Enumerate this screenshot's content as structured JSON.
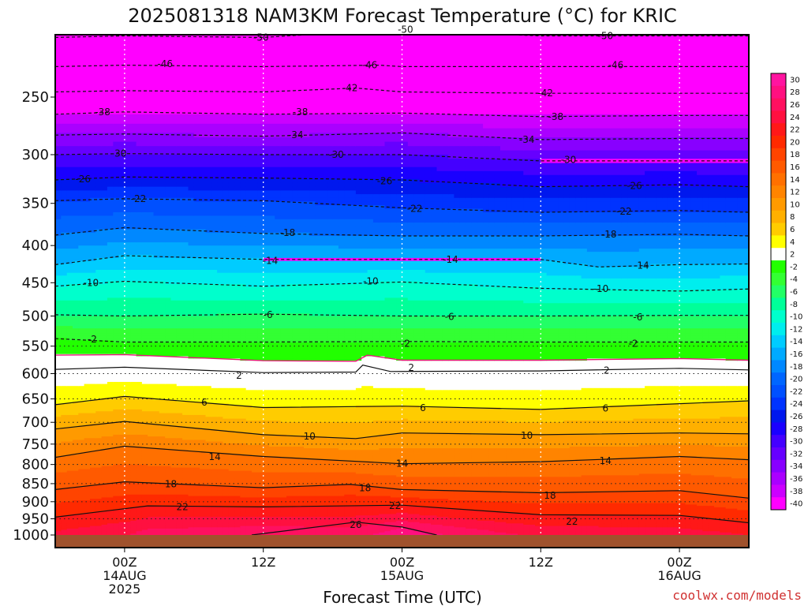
{
  "chart_data": {
    "type": "heatmap",
    "title": "2025081318 NAM3KM Forecast Temperature (°C) for KRIC",
    "xlabel": "Forecast Time (UTC)",
    "ylabel": "",
    "credit": "coolwx.com/models",
    "x_axis": {
      "unit": "forecast hour from 2025-08-13 18Z",
      "range": [
        0,
        60
      ],
      "ticks": [
        {
          "hour": 6,
          "lines": [
            "00Z",
            "14AUG",
            "2025"
          ]
        },
        {
          "hour": 18,
          "lines": [
            "12Z"
          ]
        },
        {
          "hour": 30,
          "lines": [
            "00Z",
            "15AUG"
          ]
        },
        {
          "hour": 42,
          "lines": [
            "12Z"
          ]
        },
        {
          "hour": 54,
          "lines": [
            "00Z",
            "16AUG"
          ]
        }
      ]
    },
    "y_axis": {
      "unit": "hPa",
      "scale": "log",
      "range": [
        1000,
        200
      ],
      "ticks": [
        250,
        300,
        350,
        400,
        450,
        500,
        550,
        600,
        650,
        700,
        750,
        800,
        850,
        900,
        950,
        1000
      ],
      "dotted_levels": [
        550,
        600,
        650,
        700,
        750,
        800,
        850,
        900,
        950
      ]
    },
    "colorbar": {
      "levels": [
        30,
        28,
        26,
        24,
        22,
        20,
        18,
        16,
        14,
        12,
        10,
        8,
        6,
        4,
        2,
        -2,
        -4,
        -6,
        -8,
        -10,
        -12,
        -14,
        -16,
        -18,
        -20,
        -22,
        -24,
        -26,
        -28,
        -30,
        -32,
        -34,
        -36,
        -38,
        -40
      ],
      "colors": [
        "#ff14a0",
        "#ff1080",
        "#ff1060",
        "#ff1040",
        "#ff1818",
        "#ff2a00",
        "#ff4400",
        "#ff5a00",
        "#ff7000",
        "#ff8400",
        "#ff9a00",
        "#ffb000",
        "#ffcc00",
        "#ffff00",
        "#ffffff",
        "#22ff00",
        "#33ff33",
        "#22ff66",
        "#00ff99",
        "#00ffcc",
        "#00eeee",
        "#00ccff",
        "#00aaff",
        "#0088ff",
        "#0066ff",
        "#0050ff",
        "#0033ff",
        "#0018ee",
        "#1a00ff",
        "#4400ff",
        "#6600ff",
        "#8800ff",
        "#aa00ff",
        "#cc00ff",
        "#ff00ff"
      ]
    },
    "contours": [
      {
        "value": -50,
        "style": "dashed",
        "points": [
          [
            0,
            207
          ],
          [
            6,
            206
          ],
          [
            18,
            207
          ],
          [
            29,
            202
          ],
          [
            31,
            203
          ],
          [
            42,
            206
          ],
          [
            54,
            206
          ],
          [
            60,
            206
          ]
        ],
        "labels": [
          [
            17.8,
            207
          ],
          [
            30.3,
            202
          ],
          [
            47.6,
            206
          ]
        ]
      },
      {
        "value": -46,
        "style": "dashed",
        "points": [
          [
            0,
            227
          ],
          [
            6,
            226
          ],
          [
            18,
            227
          ],
          [
            28,
            226
          ],
          [
            30,
            227
          ],
          [
            42,
            227
          ],
          [
            54,
            227
          ],
          [
            60,
            227
          ]
        ],
        "labels": [
          [
            9.5,
            225
          ],
          [
            27.2,
            226
          ],
          [
            48.5,
            226
          ]
        ]
      },
      {
        "value": -42,
        "style": "dashed",
        "points": [
          [
            0,
            246
          ],
          [
            6,
            245
          ],
          [
            18,
            246
          ],
          [
            26,
            243
          ],
          [
            30,
            246
          ],
          [
            42,
            247
          ],
          [
            54,
            247
          ],
          [
            60,
            247
          ]
        ],
        "labels": [
          [
            25.5,
            243
          ],
          [
            42.4,
            247
          ]
        ]
      },
      {
        "value": -38,
        "style": "dashed",
        "points": [
          [
            0,
            264
          ],
          [
            6,
            262
          ],
          [
            18,
            264
          ],
          [
            30,
            263
          ],
          [
            42,
            266
          ],
          [
            54,
            265
          ],
          [
            60,
            265
          ]
        ],
        "labels": [
          [
            4.1,
            262
          ],
          [
            21.2,
            262
          ],
          [
            43.3,
            266
          ]
        ]
      },
      {
        "value": -34,
        "style": "dashed",
        "points": [
          [
            0,
            282
          ],
          [
            6,
            281
          ],
          [
            18,
            283
          ],
          [
            30,
            280
          ],
          [
            42,
            286
          ],
          [
            54,
            285
          ],
          [
            60,
            285
          ]
        ],
        "labels": [
          [
            20.8,
            282
          ],
          [
            40.8,
            286
          ]
        ]
      },
      {
        "value": -30,
        "style": "dashed",
        "points": [
          [
            0,
            300
          ],
          [
            6,
            299
          ],
          [
            18,
            300
          ],
          [
            30,
            300
          ],
          [
            42,
            306
          ],
          [
            54,
            306
          ],
          [
            60,
            306
          ]
        ],
        "labels": [
          [
            5.5,
            299
          ],
          [
            24.3,
            300
          ],
          [
            44.4,
            305
          ]
        ]
      },
      {
        "value": -26,
        "style": "dashed",
        "points": [
          [
            0,
            325
          ],
          [
            6,
            322
          ],
          [
            18,
            323
          ],
          [
            30,
            325
          ],
          [
            42,
            332
          ],
          [
            54,
            330
          ],
          [
            60,
            332
          ]
        ],
        "labels": [
          [
            2.4,
            324
          ],
          [
            28.5,
            326
          ],
          [
            50.1,
            331
          ]
        ]
      },
      {
        "value": -22,
        "style": "dashed",
        "points": [
          [
            0,
            347
          ],
          [
            6,
            345
          ],
          [
            18,
            347
          ],
          [
            30,
            355
          ],
          [
            42,
            360
          ],
          [
            54,
            358
          ],
          [
            60,
            360
          ]
        ],
        "labels": [
          [
            7.2,
            345
          ],
          [
            31.1,
            356
          ],
          [
            49.2,
            359
          ]
        ]
      },
      {
        "value": -18,
        "style": "dashed",
        "points": [
          [
            0,
            387
          ],
          [
            6,
            378
          ],
          [
            18,
            385
          ],
          [
            30,
            388
          ],
          [
            42,
            388
          ],
          [
            54,
            386
          ],
          [
            60,
            388
          ]
        ],
        "labels": [
          [
            20.1,
            384
          ],
          [
            47.9,
            386
          ]
        ]
      },
      {
        "value": -14,
        "style": "dashed",
        "points": [
          [
            0,
            425
          ],
          [
            6,
            413
          ],
          [
            18,
            418
          ],
          [
            30,
            418
          ],
          [
            42,
            418
          ],
          [
            47,
            428
          ],
          [
            54,
            425
          ],
          [
            60,
            424
          ]
        ],
        "labels": [
          [
            18.6,
            420
          ],
          [
            34.2,
            418
          ],
          [
            50.7,
            426
          ]
        ]
      },
      {
        "value": -10,
        "style": "dashed",
        "points": [
          [
            0,
            455
          ],
          [
            6,
            448
          ],
          [
            18,
            455
          ],
          [
            30,
            449
          ],
          [
            42,
            458
          ],
          [
            54,
            462
          ],
          [
            60,
            459
          ]
        ],
        "labels": [
          [
            3.1,
            450
          ],
          [
            27.3,
            448
          ],
          [
            47.2,
            459
          ]
        ]
      },
      {
        "value": -6,
        "style": "dashed",
        "points": [
          [
            0,
            498
          ],
          [
            6,
            500
          ],
          [
            18,
            497
          ],
          [
            30,
            500
          ],
          [
            42,
            500
          ],
          [
            54,
            499
          ],
          [
            60,
            499
          ]
        ],
        "labels": [
          [
            18.4,
            498
          ],
          [
            34.1,
            501
          ],
          [
            50.4,
            502
          ]
        ]
      },
      {
        "value": -2,
        "style": "dashed",
        "points": [
          [
            0,
            537
          ],
          [
            6,
            543
          ],
          [
            18,
            543
          ],
          [
            30,
            542
          ],
          [
            42,
            543
          ],
          [
            54,
            543
          ],
          [
            60,
            543
          ]
        ],
        "labels": [
          [
            3.2,
            538
          ],
          [
            30.3,
            546
          ],
          [
            50.0,
            546
          ]
        ]
      },
      {
        "value": 0,
        "style": "solid-pink",
        "points": [
          [
            0,
            566
          ],
          [
            6,
            565
          ],
          [
            18,
            576
          ],
          [
            26,
            577
          ],
          [
            27,
            566
          ],
          [
            30,
            575
          ],
          [
            42,
            575
          ],
          [
            54,
            572
          ],
          [
            60,
            575
          ]
        ],
        "labels": []
      },
      {
        "value": 2,
        "style": "solid",
        "points": [
          [
            0,
            592
          ],
          [
            6,
            588
          ],
          [
            18,
            598
          ],
          [
            26,
            597
          ],
          [
            26.6,
            584
          ],
          [
            29,
            596
          ],
          [
            42,
            595
          ],
          [
            54,
            590
          ],
          [
            60,
            593
          ]
        ],
        "labels": [
          [
            15.9,
            604
          ],
          [
            30.8,
            589
          ],
          [
            47.7,
            594
          ]
        ]
      },
      {
        "value": 6,
        "style": "solid",
        "points": [
          [
            0,
            662
          ],
          [
            6,
            645
          ],
          [
            18,
            668
          ],
          [
            30,
            665
          ],
          [
            42,
            672
          ],
          [
            54,
            660
          ],
          [
            60,
            654
          ]
        ],
        "labels": [
          [
            12.9,
            657
          ],
          [
            31.8,
            669
          ],
          [
            47.6,
            670
          ]
        ]
      },
      {
        "value": 10,
        "style": "solid",
        "points": [
          [
            0,
            715
          ],
          [
            6,
            698
          ],
          [
            18,
            728
          ],
          [
            26,
            737
          ],
          [
            30,
            724
          ],
          [
            42,
            728
          ],
          [
            54,
            724
          ],
          [
            60,
            726
          ]
        ],
        "labels": [
          [
            22.0,
            732
          ],
          [
            40.8,
            730
          ]
        ]
      },
      {
        "value": 14,
        "style": "solid",
        "points": [
          [
            0,
            782
          ],
          [
            6,
            755
          ],
          [
            18,
            780
          ],
          [
            30,
            798
          ],
          [
            42,
            793
          ],
          [
            54,
            780
          ],
          [
            60,
            788
          ]
        ],
        "labels": [
          [
            13.8,
            781
          ],
          [
            30.0,
            798
          ],
          [
            47.6,
            791
          ]
        ]
      },
      {
        "value": 18,
        "style": "solid",
        "points": [
          [
            0,
            866
          ],
          [
            6,
            845
          ],
          [
            18,
            861
          ],
          [
            25.5,
            852
          ],
          [
            30,
            866
          ],
          [
            42,
            875
          ],
          [
            54,
            869
          ],
          [
            60,
            890
          ]
        ],
        "labels": [
          [
            10.0,
            851
          ],
          [
            26.8,
            862
          ],
          [
            42.8,
            883
          ]
        ]
      },
      {
        "value": 22,
        "style": "solid",
        "points": [
          [
            0,
            945
          ],
          [
            8,
            912
          ],
          [
            18,
            915
          ],
          [
            30,
            910
          ],
          [
            42,
            938
          ],
          [
            54,
            940
          ],
          [
            60,
            962
          ]
        ],
        "labels": [
          [
            11.0,
            915
          ],
          [
            29.4,
            912
          ],
          [
            44.7,
            958
          ]
        ]
      },
      {
        "value": 26,
        "style": "solid",
        "points": [
          [
            17,
            1000
          ],
          [
            26,
            960
          ],
          [
            30,
            975
          ],
          [
            33,
            1000
          ]
        ],
        "labels": [
          [
            26.0,
            968
          ]
        ]
      }
    ]
  }
}
